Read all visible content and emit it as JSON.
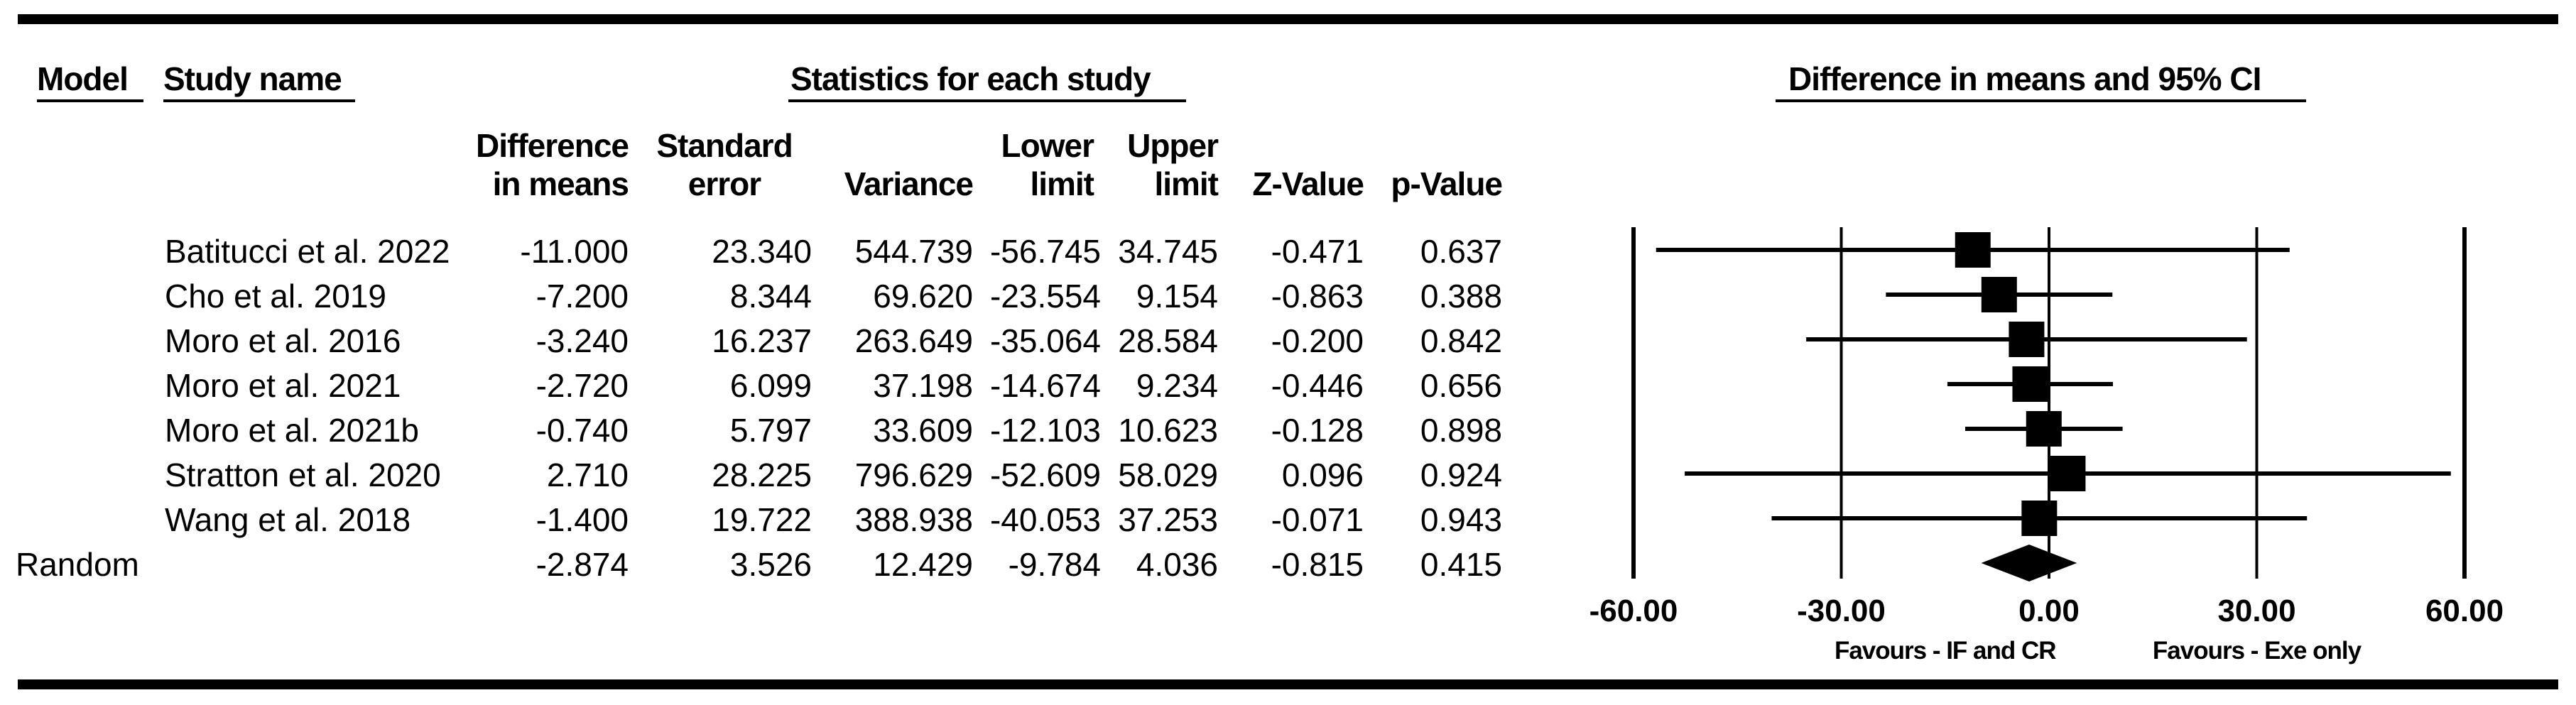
{
  "headers": {
    "model": "Model",
    "study_name": "Study name",
    "statistics": "Statistics for each study",
    "forest": "Difference in means and 95% CI"
  },
  "columns": {
    "diff_line1": "Difference",
    "diff_line2": "in means",
    "se_line1": "Standard",
    "se_line2": "error",
    "variance": "Variance",
    "lower_line1": "Lower",
    "lower_line2": "limit",
    "upper_line1": "Upper",
    "upper_line2": "limit",
    "z": "Z-Value",
    "p": "p-Value"
  },
  "rows": [
    {
      "model": "",
      "study": "Batitucci et al. 2022",
      "diff": "-11.000",
      "se": "23.340",
      "var": "544.739",
      "lower": "-56.745",
      "upper": "34.745",
      "z": "-0.471",
      "p": "0.637"
    },
    {
      "model": "",
      "study": "Cho et al. 2019",
      "diff": "-7.200",
      "se": "8.344",
      "var": "69.620",
      "lower": "-23.554",
      "upper": "9.154",
      "z": "-0.863",
      "p": "0.388"
    },
    {
      "model": "",
      "study": "Moro et al. 2016",
      "diff": "-3.240",
      "se": "16.237",
      "var": "263.649",
      "lower": "-35.064",
      "upper": "28.584",
      "z": "-0.200",
      "p": "0.842"
    },
    {
      "model": "",
      "study": "Moro et al. 2021",
      "diff": "-2.720",
      "se": "6.099",
      "var": "37.198",
      "lower": "-14.674",
      "upper": "9.234",
      "z": "-0.446",
      "p": "0.656"
    },
    {
      "model": "",
      "study": "Moro et al. 2021b",
      "diff": "-0.740",
      "se": "5.797",
      "var": "33.609",
      "lower": "-12.103",
      "upper": "10.623",
      "z": "-0.128",
      "p": "0.898"
    },
    {
      "model": "",
      "study": "Stratton et al. 2020",
      "diff": "2.710",
      "se": "28.225",
      "var": "796.629",
      "lower": "-52.609",
      "upper": "58.029",
      "z": "0.096",
      "p": "0.924"
    },
    {
      "model": "",
      "study": "Wang et al. 2018",
      "diff": "-1.400",
      "se": "19.722",
      "var": "388.938",
      "lower": "-40.053",
      "upper": "37.253",
      "z": "-0.071",
      "p": "0.943"
    },
    {
      "model": "Random",
      "study": "",
      "diff": "-2.874",
      "se": "3.526",
      "var": "12.429",
      "lower": "-9.784",
      "upper": "4.036",
      "z": "-0.815",
      "p": "0.415"
    }
  ],
  "chart_data": {
    "type": "forest",
    "xlim": [
      -60,
      60
    ],
    "ticks": [
      -60,
      -30,
      0,
      30,
      60
    ],
    "tick_labels": [
      "-60.00",
      "-30.00",
      "0.00",
      "30.00",
      "60.00"
    ],
    "favours_left": "Favours - IF and CR",
    "favours_right": "Favours - Exe only",
    "studies": [
      {
        "estimate": -11.0,
        "lower": -56.745,
        "upper": 34.745
      },
      {
        "estimate": -7.2,
        "lower": -23.554,
        "upper": 9.154
      },
      {
        "estimate": -3.24,
        "lower": -35.064,
        "upper": 28.584
      },
      {
        "estimate": -2.72,
        "lower": -14.674,
        "upper": 9.234
      },
      {
        "estimate": -0.74,
        "lower": -12.103,
        "upper": 10.623
      },
      {
        "estimate": 2.71,
        "lower": -52.609,
        "upper": 58.029
      },
      {
        "estimate": -1.4,
        "lower": -40.053,
        "upper": 37.253
      }
    ],
    "summary": {
      "estimate": -2.874,
      "lower": -9.784,
      "upper": 4.036
    }
  }
}
